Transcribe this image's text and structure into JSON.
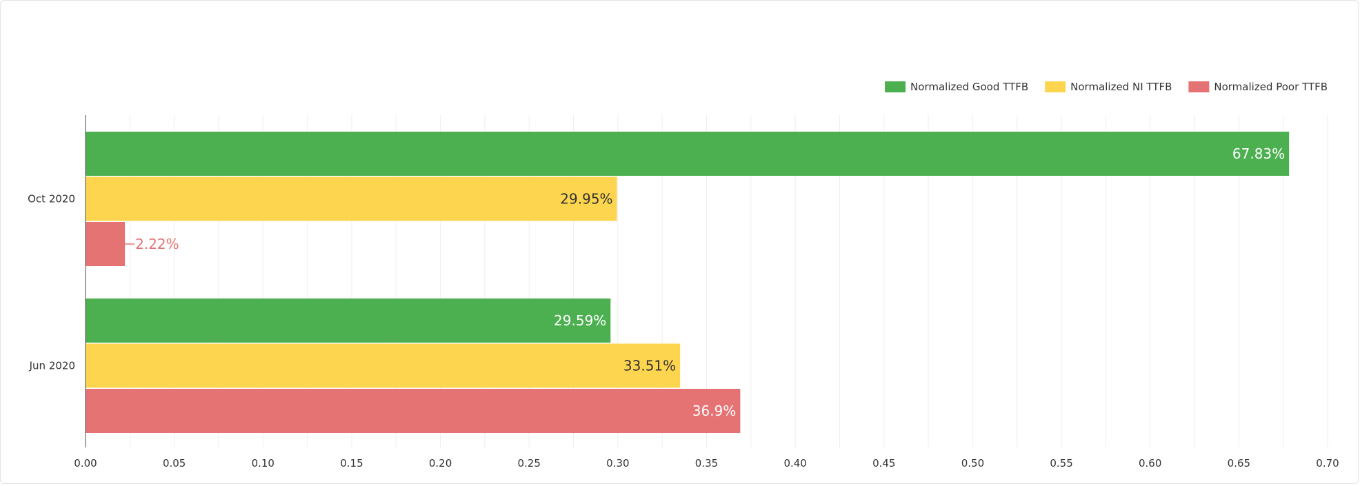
{
  "chart_data": {
    "type": "bar",
    "orientation": "horizontal",
    "categories": [
      "Oct 2020",
      "Jun 2020"
    ],
    "series": [
      {
        "name": "Normalized Good TTFB",
        "color": "#4caf50",
        "label_color": "#ffffff",
        "values": [
          0.6783,
          0.2959
        ],
        "labels": [
          "67.83%",
          "29.59%"
        ]
      },
      {
        "name": "Normalized NI TTFB",
        "color": "#fdd54f",
        "label_color": "#333333",
        "values": [
          0.2995,
          0.3351
        ],
        "labels": [
          "29.95%",
          "33.51%"
        ]
      },
      {
        "name": "Normalized Poor TTFB",
        "color": "#e57373",
        "label_color": "#ffffff",
        "outside_label_color": "#e57373",
        "values": [
          0.0222,
          0.369
        ],
        "labels": [
          "2.22%",
          "36.9%"
        ]
      }
    ],
    "xlim": [
      0,
      0.7
    ],
    "x_ticks": [
      "0.00",
      "0.05",
      "0.10",
      "0.15",
      "0.20",
      "0.25",
      "0.30",
      "0.35",
      "0.40",
      "0.45",
      "0.50",
      "0.55",
      "0.60",
      "0.65",
      "0.70"
    ],
    "grid": true,
    "legend_position": "top-right",
    "title": "",
    "xlabel": "",
    "ylabel": ""
  }
}
